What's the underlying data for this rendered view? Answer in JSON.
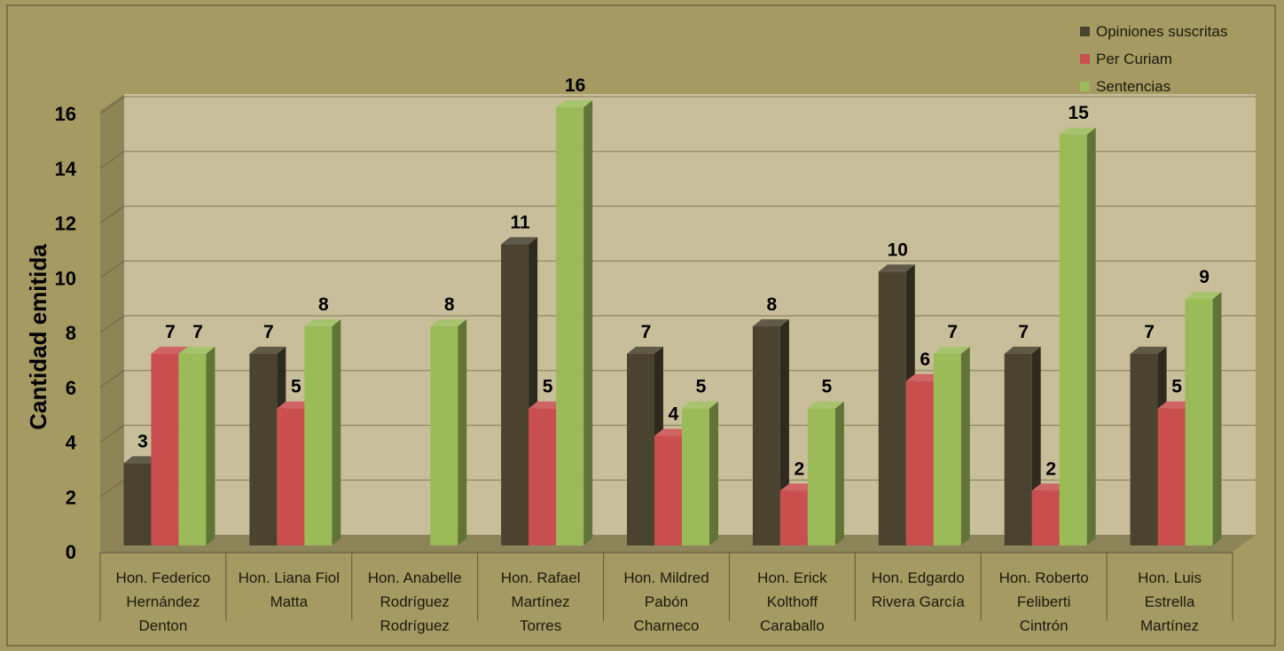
{
  "chart_data": {
    "type": "bar",
    "ylabel": "Cantidad emitida",
    "ylim": [
      0,
      16
    ],
    "yticks": [
      0,
      2,
      4,
      6,
      8,
      10,
      12,
      14,
      16
    ],
    "grid": true,
    "legend_position": "top-right",
    "categories": [
      [
        "Hon. Federico",
        "Hernández",
        "Denton"
      ],
      [
        "Hon. Liana Fiol",
        "Matta"
      ],
      [
        "Hon. Anabelle",
        "Rodríguez",
        "Rodríguez"
      ],
      [
        "Hon. Rafael",
        "Martínez",
        "Torres"
      ],
      [
        "Hon. Mildred",
        "Pabón",
        "Charneco"
      ],
      [
        "Hon. Erick",
        "Kolthoff",
        "Caraballo"
      ],
      [
        "Hon.  Edgardo",
        "Rivera García"
      ],
      [
        "Hon. Roberto",
        "Feliberti",
        "Cintrón"
      ],
      [
        "Hon. Luis",
        "Estrella",
        "Martínez"
      ]
    ],
    "series": [
      {
        "name": "Opiniones suscritas",
        "color": "#4a4330",
        "values": [
          3,
          7,
          null,
          11,
          7,
          8,
          10,
          7,
          7
        ]
      },
      {
        "name": "Per Curiam",
        "color": "#c94f4f",
        "values": [
          7,
          5,
          null,
          5,
          4,
          2,
          6,
          2,
          5
        ]
      },
      {
        "name": "Sentencias",
        "color": "#9bbb59",
        "values": [
          7,
          8,
          8,
          16,
          5,
          5,
          7,
          15,
          9
        ]
      }
    ]
  }
}
